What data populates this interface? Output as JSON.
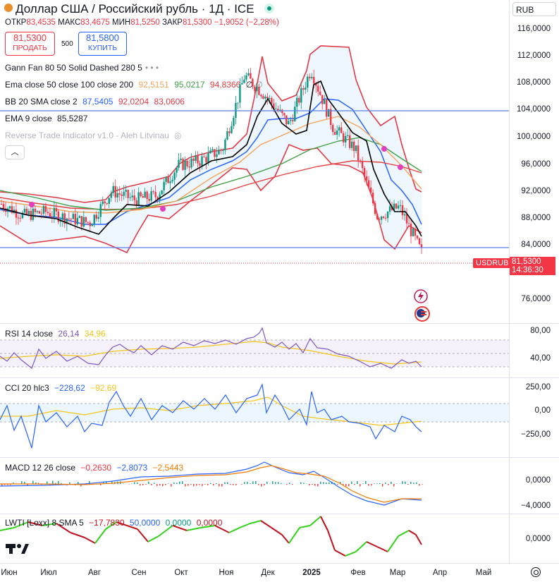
{
  "header": {
    "title": "Доллар США / Российский рубль · 1Д · ICE",
    "currency": "RUB",
    "ohlc": {
      "open_label": "ОТКР",
      "open": "83,4535",
      "high_label": "МАКС",
      "high": "83,4675",
      "low_label": "МИН",
      "low": "81,5250",
      "close_label": "ЗАКР",
      "close": "81,5300",
      "change": "−1,9052 (−2,28%)"
    },
    "sell": {
      "price": "81,5300",
      "label": "ПРОДАТЬ"
    },
    "spread": "500",
    "buy": {
      "price": "81,5800",
      "label": "КУПИТЬ"
    }
  },
  "legend": {
    "gann": "Gann Fan 80 50 Solid Dashed 280 5",
    "ema_label": "Ema close 50 close 100 close 200",
    "ema50": "92,5151",
    "ema100": "95,0217",
    "ema200": "94,8366",
    "ema_tail": "∅ ∅",
    "bb_label": "BB 20 SMA close 2",
    "bb_mid": "87,5405",
    "bb_up": "92,0204",
    "bb_low": "83,0606",
    "ema9_label": "EMA 9 close",
    "ema9": "85,5287",
    "rti": "Reverse Trade Indicator v1.0 - Aleh Litvinau",
    "rsi_label": "RSI 14 close",
    "rsi": "26,14",
    "rsi_ma": "34,96",
    "cci_label": "CCI 20 hlc3",
    "cci": "−228,62",
    "cci_ma": "−92,69",
    "macd_label": "MACD 12 26 close",
    "macd_hist": "−0,2630",
    "macd": "−2,8073",
    "macd_signal": "−2,5443",
    "lwti_label": "LWTI [Loxx] 8 SMA 5",
    "lwti": "−17,7830",
    "lwti_a": "50,0000",
    "lwti_b": "0,0000",
    "lwti_c": "0,0000"
  },
  "colors": {
    "up": "#089981",
    "down": "#f23645",
    "bb": "#e03a46",
    "ema9": "#000000",
    "ema50": "#f7a35c",
    "ema100": "#43a047",
    "ema200": "#e5403f",
    "sma": "#2962ff",
    "hline": "#5b7fe6",
    "rsi": "#7e57c2",
    "cci": "#2962ff",
    "ma_yellow": "#f5c518",
    "macd": "#2962ff",
    "signal": "#f57c00",
    "lwti_up": "#32d11a",
    "lwti_down": "#c1121f",
    "magenta_dot": "#e040c0"
  },
  "price_axis": {
    "ticks": [
      "116,0000",
      "112,0000",
      "108,0000",
      "104,0000",
      "100,0000",
      "96,0000",
      "92,0000",
      "88,0000",
      "84,0000",
      "76,0000"
    ],
    "symbol_tag": "USDRUB",
    "last_price": "81,5300",
    "countdown": "14:36:30"
  },
  "rsi_axis": [
    "80,00",
    "40,00"
  ],
  "cci_axis": [
    "250,00",
    "0,00",
    "−250,00"
  ],
  "macd_axis": [
    "0,0000",
    "−4,0000"
  ],
  "lwti_axis": [
    "0,0000"
  ],
  "time_axis": [
    "Июн",
    "Июл",
    "Авг",
    "Сен",
    "Окт",
    "Ноя",
    "Дек",
    "2025",
    "Фев",
    "Мар",
    "Апр",
    "Май"
  ],
  "chart_data": {
    "type": "candlestick",
    "title": "Доллар США / Российский рубль · 1Д · ICE",
    "ylim": [
      73,
      118
    ],
    "horizontal_levels": [
      104.0,
      84.0
    ],
    "close_path": [
      {
        "x": "Июн",
        "y": 89.5
      },
      {
        "x": "mid-Июн",
        "y": 87.6
      },
      {
        "x": "Июл",
        "y": 88.2
      },
      {
        "x": "mid-Июл",
        "y": 87.2
      },
      {
        "x": "Авг",
        "y": 86.4
      },
      {
        "x": "mid-Авг",
        "y": 91.6
      },
      {
        "x": "Сен",
        "y": 90.2
      },
      {
        "x": "mid-Сен",
        "y": 90.8
      },
      {
        "x": "Окт",
        "y": 95.8
      },
      {
        "x": "mid-Окт",
        "y": 96.6
      },
      {
        "x": "Ноя",
        "y": 98.4
      },
      {
        "x": "late-Ноя",
        "y": 110.5
      },
      {
        "x": "Дек",
        "y": 107.0
      },
      {
        "x": "mid-Дек",
        "y": 102.5
      },
      {
        "x": "2025",
        "y": 111.5
      },
      {
        "x": "mid-Янв",
        "y": 102.0
      },
      {
        "x": "Фев",
        "y": 98.5
      },
      {
        "x": "mid-Фев",
        "y": 87.5
      },
      {
        "x": "Мар",
        "y": 89.0
      },
      {
        "x": "mid-Мар",
        "y": 81.53
      }
    ],
    "indicators": {
      "ema50": 92.5151,
      "ema100": 95.0217,
      "ema200": 94.8366,
      "bb_mid": 87.5405,
      "bb_upper": 92.0204,
      "bb_lower": 83.0606,
      "ema9": 85.5287,
      "rsi14": 26.14,
      "rsi_ma": 34.96,
      "cci20": -228.62,
      "cci_ma": -92.69,
      "macd_hist": -0.263,
      "macd": -2.8073,
      "macd_signal": -2.5443,
      "lwti": -17.783
    }
  }
}
